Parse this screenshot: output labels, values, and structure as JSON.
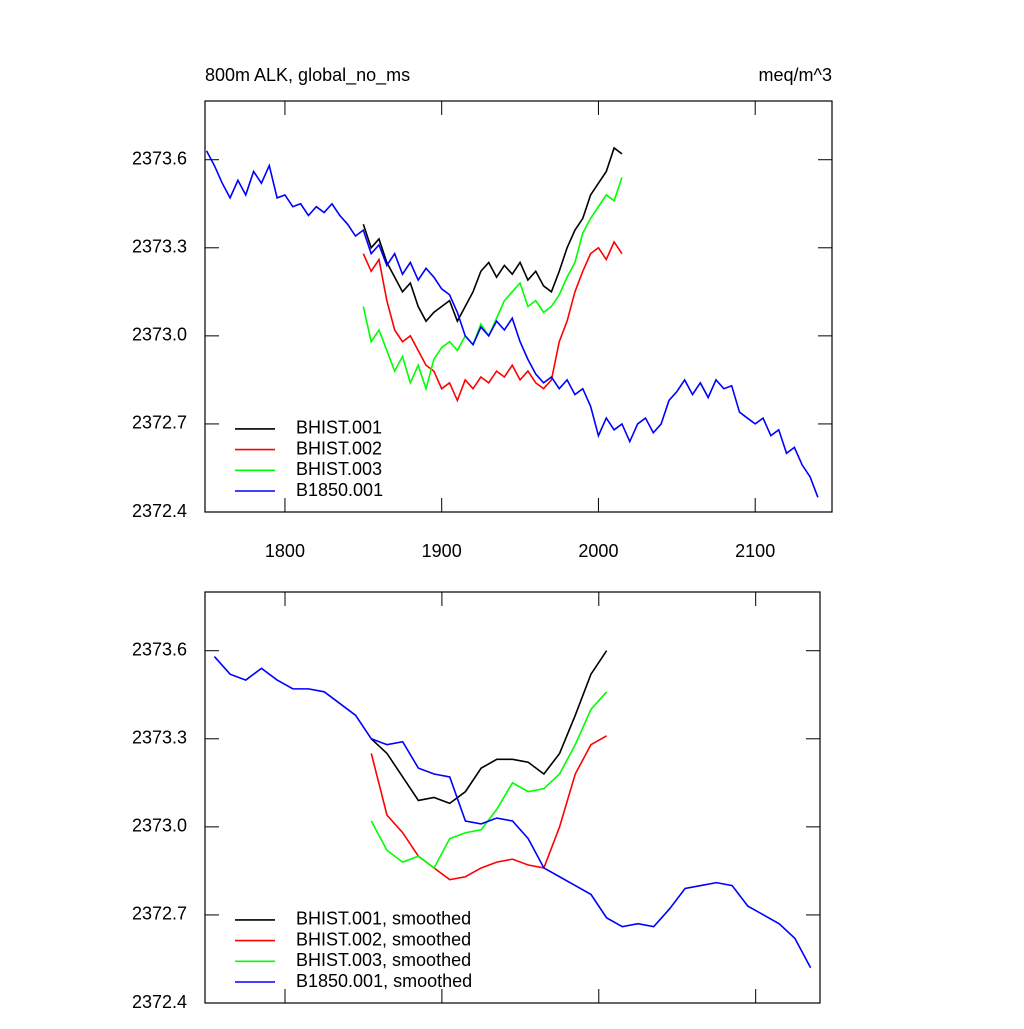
{
  "chart_data": [
    {
      "type": "line",
      "title": "800m ALK, global_no_ms",
      "units": "meq/m^3",
      "xlim": [
        1749,
        2149
      ],
      "xticks": [
        1800,
        1900,
        2000,
        2100
      ],
      "xtick_labels": true,
      "ylim": [
        2372.4,
        2373.8
      ],
      "yticks": [
        {
          "value": 2372.4,
          "label": "2372.4"
        },
        {
          "value": 2372.7,
          "label": "2372.7"
        },
        {
          "value": 2373.0,
          "label": "2373.0"
        },
        {
          "value": 2373.3,
          "label": "2373.3"
        },
        {
          "value": 2373.6,
          "label": "2373.6"
        }
      ],
      "legend": "bottom-left",
      "x": [
        1750,
        1755,
        1760,
        1765,
        1770,
        1775,
        1780,
        1785,
        1790,
        1795,
        1800,
        1805,
        1810,
        1815,
        1820,
        1825,
        1830,
        1835,
        1840,
        1845,
        1850,
        1855,
        1860,
        1865,
        1870,
        1875,
        1880,
        1885,
        1890,
        1895,
        1900,
        1905,
        1910,
        1915,
        1920,
        1925,
        1930,
        1935,
        1940,
        1945,
        1950,
        1955,
        1960,
        1965,
        1970,
        1975,
        1980,
        1985,
        1990,
        1995,
        2000,
        2005,
        2010,
        2015,
        2020,
        2025,
        2030,
        2035,
        2040,
        2045,
        2050,
        2055,
        2060,
        2065,
        2070,
        2075,
        2080,
        2085,
        2090,
        2095,
        2100,
        2105,
        2110,
        2115,
        2120,
        2125,
        2130,
        2135,
        2140
      ],
      "series": [
        {
          "name": "BHIST.001",
          "color": "#000000",
          "values": [
            null,
            null,
            null,
            null,
            null,
            null,
            null,
            null,
            null,
            null,
            null,
            null,
            null,
            null,
            null,
            null,
            null,
            null,
            null,
            null,
            2373.38,
            2373.3,
            2373.33,
            2373.25,
            2373.2,
            2373.15,
            2373.18,
            2373.1,
            2373.05,
            2373.08,
            2373.1,
            2373.12,
            2373.05,
            2373.1,
            2373.15,
            2373.22,
            2373.25,
            2373.2,
            2373.24,
            2373.21,
            2373.25,
            2373.19,
            2373.22,
            2373.17,
            2373.15,
            2373.22,
            2373.3,
            2373.36,
            2373.4,
            2373.48,
            2373.52,
            2373.56,
            2373.64,
            2373.62,
            null,
            null,
            null,
            null,
            null,
            null,
            null,
            null,
            null,
            null,
            null,
            null,
            null,
            null,
            null,
            null,
            null,
            null,
            null,
            null,
            null,
            null,
            null,
            null,
            null
          ]
        },
        {
          "name": "BHIST.002",
          "color": "#ff0000",
          "values": [
            null,
            null,
            null,
            null,
            null,
            null,
            null,
            null,
            null,
            null,
            null,
            null,
            null,
            null,
            null,
            null,
            null,
            null,
            null,
            null,
            2373.28,
            2373.22,
            2373.26,
            2373.12,
            2373.02,
            2372.98,
            2373.0,
            2372.95,
            2372.9,
            2372.88,
            2372.82,
            2372.84,
            2372.78,
            2372.85,
            2372.82,
            2372.86,
            2372.84,
            2372.88,
            2372.86,
            2372.9,
            2372.85,
            2372.88,
            2372.84,
            2372.82,
            2372.85,
            2372.98,
            2373.05,
            2373.15,
            2373.22,
            2373.28,
            2373.3,
            2373.26,
            2373.32,
            2373.28,
            null,
            null,
            null,
            null,
            null,
            null,
            null,
            null,
            null,
            null,
            null,
            null,
            null,
            null,
            null,
            null,
            null,
            null,
            null,
            null,
            null,
            null,
            null,
            null,
            null
          ]
        },
        {
          "name": "BHIST.003",
          "color": "#00ff00",
          "values": [
            null,
            null,
            null,
            null,
            null,
            null,
            null,
            null,
            null,
            null,
            null,
            null,
            null,
            null,
            null,
            null,
            null,
            null,
            null,
            null,
            2373.1,
            2372.98,
            2373.02,
            2372.95,
            2372.88,
            2372.93,
            2372.84,
            2372.9,
            2372.82,
            2372.92,
            2372.96,
            2372.98,
            2372.95,
            2373.0,
            2372.97,
            2373.04,
            2373.0,
            2373.06,
            2373.12,
            2373.15,
            2373.18,
            2373.1,
            2373.12,
            2373.08,
            2373.1,
            2373.14,
            2373.2,
            2373.25,
            2373.35,
            2373.4,
            2373.44,
            2373.48,
            2373.46,
            2373.54,
            null,
            null,
            null,
            null,
            null,
            null,
            null,
            null,
            null,
            null,
            null,
            null,
            null,
            null,
            null,
            null,
            null,
            null,
            null,
            null,
            null,
            null,
            null,
            null,
            null
          ]
        },
        {
          "name": "B1850.001",
          "color": "#0000ff",
          "values": [
            2373.63,
            2373.58,
            2373.52,
            2373.47,
            2373.53,
            2373.48,
            2373.56,
            2373.52,
            2373.58,
            2373.47,
            2373.48,
            2373.44,
            2373.45,
            2373.41,
            2373.44,
            2373.42,
            2373.45,
            2373.41,
            2373.38,
            2373.34,
            2373.36,
            2373.28,
            2373.31,
            2373.24,
            2373.28,
            2373.21,
            2373.25,
            2373.19,
            2373.23,
            2373.2,
            2373.16,
            2373.14,
            2373.08,
            2373.0,
            2372.97,
            2373.03,
            2373.0,
            2373.05,
            2373.02,
            2373.06,
            2372.98,
            2372.92,
            2372.87,
            2372.84,
            2372.86,
            2372.82,
            2372.85,
            2372.8,
            2372.82,
            2372.76,
            2372.66,
            2372.72,
            2372.68,
            2372.7,
            2372.64,
            2372.7,
            2372.72,
            2372.67,
            2372.7,
            2372.78,
            2372.81,
            2372.85,
            2372.8,
            2372.84,
            2372.79,
            2372.85,
            2372.82,
            2372.83,
            2372.74,
            2372.72,
            2372.7,
            2372.72,
            2372.66,
            2372.68,
            2372.6,
            2372.62,
            2372.56,
            2372.52,
            2372.45
          ]
        }
      ]
    },
    {
      "type": "line",
      "xlim": [
        1749,
        2141
      ],
      "xticks": [
        1800,
        1900,
        2000,
        2100
      ],
      "xtick_labels": false,
      "ylim": [
        2372.4,
        2373.8
      ],
      "yticks": [
        {
          "value": 2372.4,
          "label": "2372.4"
        },
        {
          "value": 2372.7,
          "label": "2372.7"
        },
        {
          "value": 2373.0,
          "label": "2373.0"
        },
        {
          "value": 2373.3,
          "label": "2373.3"
        },
        {
          "value": 2373.6,
          "label": "2373.6"
        }
      ],
      "legend": "bottom-left",
      "x": [
        1755,
        1765,
        1775,
        1785,
        1795,
        1805,
        1815,
        1825,
        1835,
        1845,
        1855,
        1865,
        1875,
        1885,
        1895,
        1905,
        1915,
        1925,
        1935,
        1945,
        1955,
        1965,
        1975,
        1985,
        1995,
        2005,
        2015,
        2025,
        2035,
        2045,
        2055,
        2065,
        2075,
        2085,
        2095,
        2105,
        2115,
        2125,
        2135
      ],
      "series": [
        {
          "name": "BHIST.001, smoothed",
          "color": "#000000",
          "values": [
            null,
            null,
            null,
            null,
            null,
            null,
            null,
            null,
            null,
            null,
            2373.3,
            2373.25,
            2373.17,
            2373.09,
            2373.1,
            2373.08,
            2373.12,
            2373.2,
            2373.23,
            2373.23,
            2373.22,
            2373.18,
            2373.25,
            2373.38,
            2373.52,
            2373.6,
            null,
            null,
            null,
            null,
            null,
            null,
            null,
            null,
            null,
            null,
            null,
            null,
            null
          ]
        },
        {
          "name": "BHIST.002, smoothed",
          "color": "#ff0000",
          "values": [
            null,
            null,
            null,
            null,
            null,
            null,
            null,
            null,
            null,
            null,
            2373.25,
            2373.04,
            2372.98,
            2372.9,
            2372.86,
            2372.82,
            2372.83,
            2372.86,
            2372.88,
            2372.89,
            2372.87,
            2372.86,
            2373.0,
            2373.18,
            2373.28,
            2373.31,
            null,
            null,
            null,
            null,
            null,
            null,
            null,
            null,
            null,
            null,
            null,
            null,
            null
          ]
        },
        {
          "name": "BHIST.003, smoothed",
          "color": "#00ff00",
          "values": [
            null,
            null,
            null,
            null,
            null,
            null,
            null,
            null,
            null,
            null,
            2373.02,
            2372.92,
            2372.88,
            2372.9,
            2372.86,
            2372.96,
            2372.98,
            2372.99,
            2373.06,
            2373.15,
            2373.12,
            2373.13,
            2373.18,
            2373.28,
            2373.4,
            2373.46,
            null,
            null,
            null,
            null,
            null,
            null,
            null,
            null,
            null,
            null,
            null,
            null,
            null
          ]
        },
        {
          "name": "B1850.001, smoothed",
          "color": "#0000ff",
          "values": [
            2373.58,
            2373.52,
            2373.5,
            2373.54,
            2373.5,
            2373.47,
            2373.47,
            2373.46,
            2373.42,
            2373.38,
            2373.3,
            2373.28,
            2373.29,
            2373.2,
            2373.18,
            2373.17,
            2373.02,
            2373.01,
            2373.03,
            2373.02,
            2372.96,
            2372.86,
            2372.83,
            2372.8,
            2372.77,
            2372.69,
            2372.66,
            2372.67,
            2372.66,
            2372.72,
            2372.79,
            2372.8,
            2372.81,
            2372.8,
            2372.73,
            2372.7,
            2372.67,
            2372.62,
            2372.52
          ]
        }
      ]
    }
  ]
}
